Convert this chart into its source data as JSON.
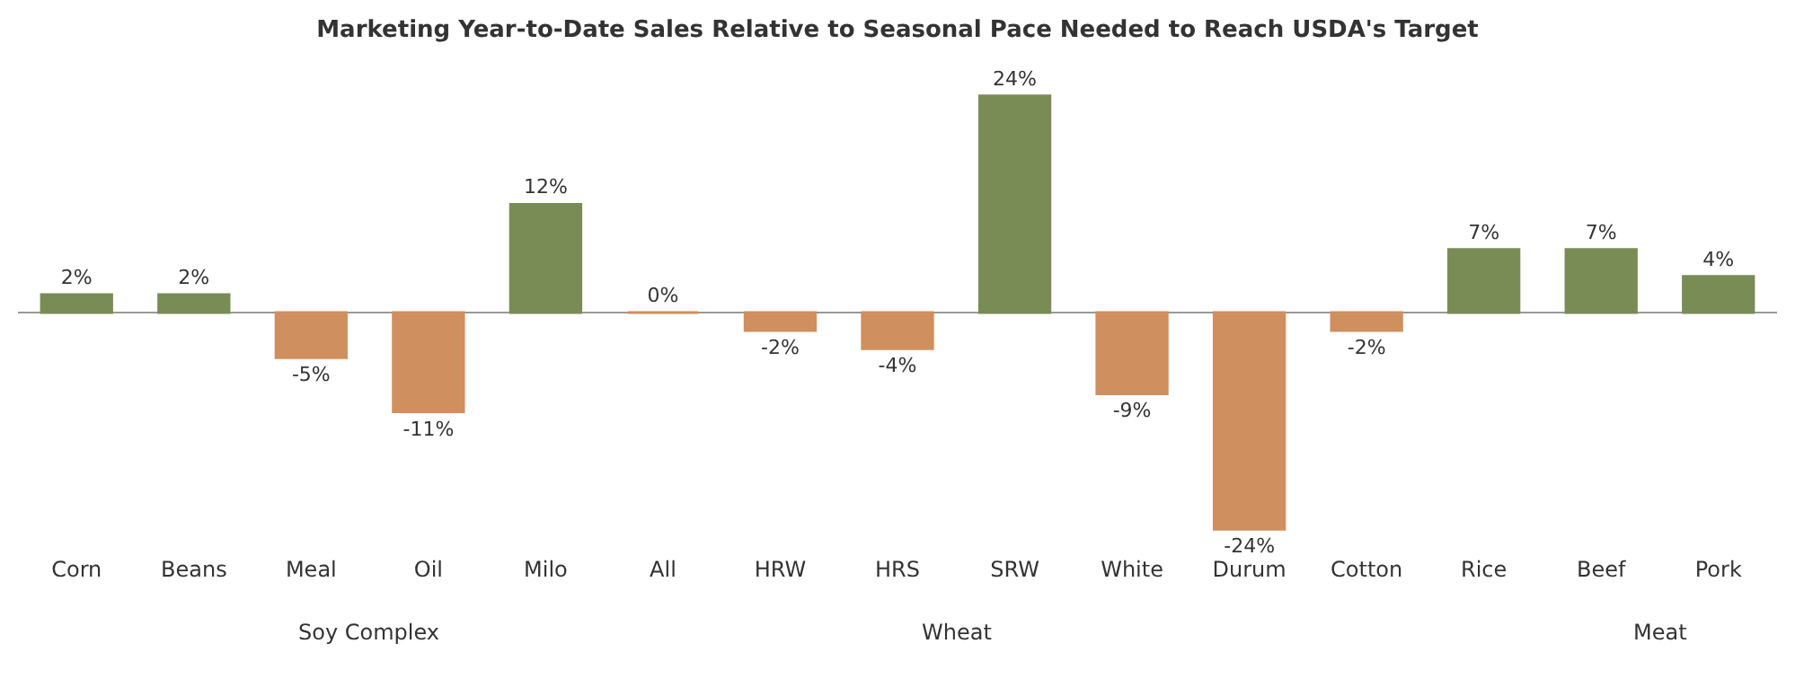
{
  "chart_data": {
    "type": "bar",
    "title": "Marketing Year-to-Date Sales Relative to Seasonal Pace Needed to Reach USDA's Target",
    "categories": [
      "Corn",
      "Beans",
      "Meal",
      "Oil",
      "Milo",
      "All",
      "HRW",
      "HRS",
      "SRW",
      "White",
      "Durum",
      "Cotton",
      "Rice",
      "Beef",
      "Pork"
    ],
    "values": [
      2,
      2,
      -5,
      -11,
      12,
      0,
      -2,
      -4,
      24,
      -9,
      -24,
      -2,
      7,
      7,
      4
    ],
    "value_labels": [
      "2%",
      "2%",
      "-5%",
      "-11%",
      "12%",
      "0%",
      "-2%",
      "-4%",
      "24%",
      "-9%",
      "-24%",
      "-2%",
      "7%",
      "7%",
      "4%"
    ],
    "colors": [
      "#7a8c56",
      "#7a8c56",
      "#d08f5e",
      "#d08f5e",
      "#7a8c56",
      "#d08f5e",
      "#d08f5e",
      "#d08f5e",
      "#7a8c56",
      "#d08f5e",
      "#d08f5e",
      "#d08f5e",
      "#7a8c56",
      "#7a8c56",
      "#7a8c56"
    ],
    "annotations": [
      "Soy Complex",
      "Wheat",
      "Meat"
    ],
    "legend": false
  }
}
